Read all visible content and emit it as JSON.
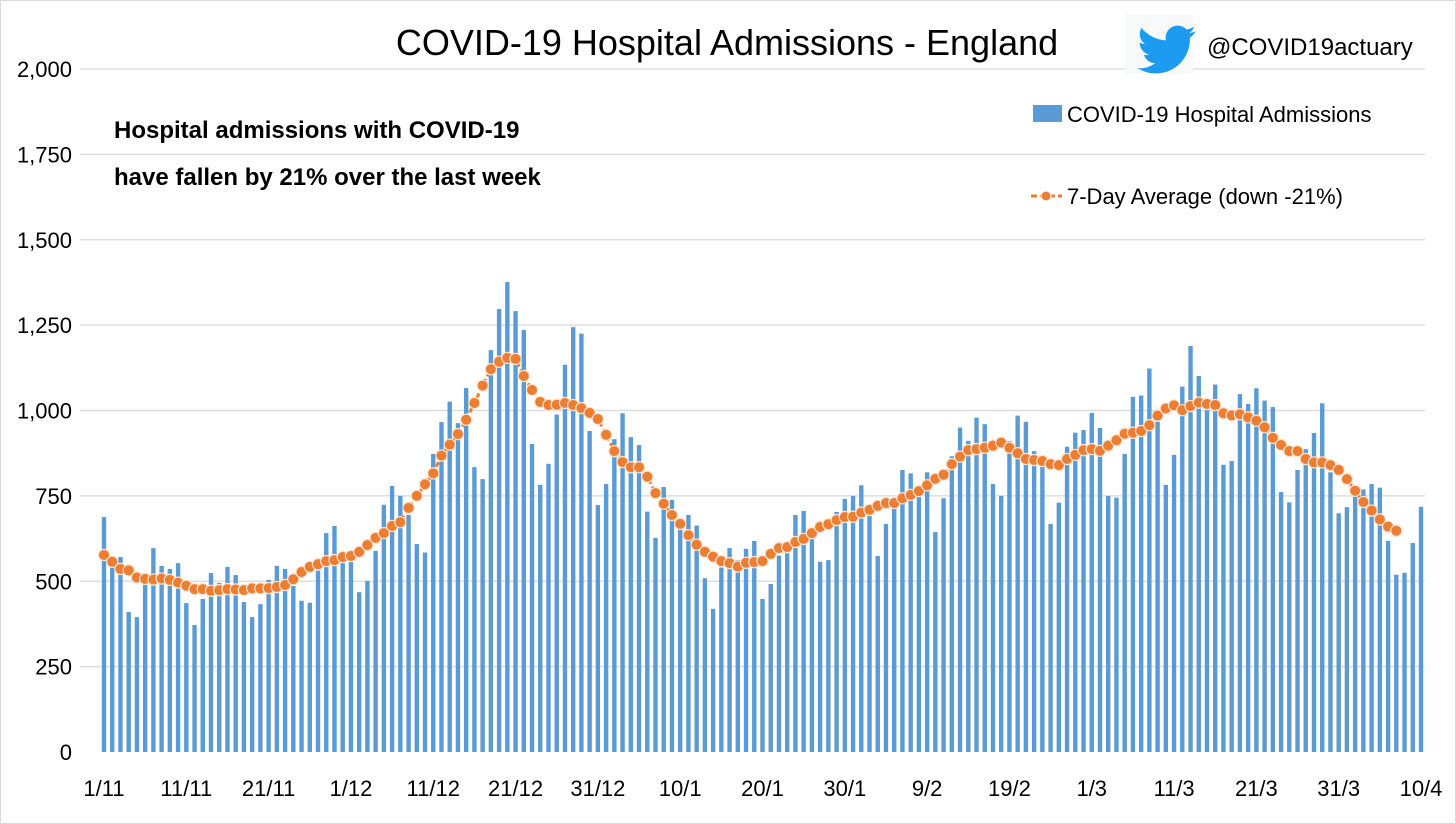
{
  "chart_data": {
    "type": "bar",
    "title": "COVID-19 Hospital Admissions - England",
    "handle": "@COVID19actuary",
    "annotation": [
      "Hospital admissions with COVID-19",
      "have fallen by 21% over the last week"
    ],
    "xlabel": "",
    "ylabel": "",
    "ylim": [
      0,
      2000
    ],
    "y_ticks": [
      0,
      250,
      500,
      750,
      1000,
      1250,
      1500,
      1750,
      2000
    ],
    "y_tick_labels": [
      "0",
      "250",
      "500",
      "750",
      "1,000",
      "1,250",
      "1,500",
      "1,750",
      "2,000"
    ],
    "x_start": "1/11",
    "x_step_days": 1,
    "x_ticks": [
      {
        "label": "1/11",
        "index": 0
      },
      {
        "label": "11/11",
        "index": 10
      },
      {
        "label": "21/11",
        "index": 20
      },
      {
        "label": "1/12",
        "index": 30
      },
      {
        "label": "11/12",
        "index": 40
      },
      {
        "label": "21/12",
        "index": 50
      },
      {
        "label": "31/12",
        "index": 60
      },
      {
        "label": "10/1",
        "index": 70
      },
      {
        "label": "20/1",
        "index": 80
      },
      {
        "label": "30/1",
        "index": 90
      },
      {
        "label": "9/2",
        "index": 100
      },
      {
        "label": "19/2",
        "index": 110
      },
      {
        "label": "1/3",
        "index": 120
      },
      {
        "label": "11/3",
        "index": 130
      },
      {
        "label": "21/3",
        "index": 140
      },
      {
        "label": "31/3",
        "index": 150
      },
      {
        "label": "10/4",
        "index": 160
      }
    ],
    "grid": true,
    "legend_position": "top-right",
    "series": [
      {
        "name": "COVID-19 Hospital Admissions",
        "type": "bar",
        "color": "#5b9bd5",
        "values": [
          688,
          555,
          571,
          410,
          395,
          489,
          597,
          545,
          536,
          553,
          436,
          372,
          448,
          524,
          495,
          542,
          518,
          439,
          395,
          433,
          504,
          545,
          536,
          486,
          443,
          437,
          531,
          641,
          662,
          553,
          556,
          468,
          501,
          589,
          724,
          779,
          750,
          694,
          609,
          584,
          873,
          966,
          1026,
          963,
          1066,
          834,
          799,
          1177,
          1297,
          1376,
          1291,
          1236,
          902,
          782,
          844,
          988,
          1134,
          1244,
          1225,
          940,
          723,
          785,
          916,
          992,
          922,
          899,
          704,
          627,
          776,
          738,
          674,
          694,
          663,
          509,
          419,
          540,
          597,
          562,
          595,
          618,
          448,
          492,
          575,
          582,
          694,
          706,
          624,
          557,
          562,
          703,
          741,
          750,
          781,
          691,
          574,
          668,
          714,
          826,
          816,
          748,
          819,
          644,
          743,
          866,
          950,
          911,
          979,
          960,
          785,
          750,
          911,
          985,
          967,
          881,
          836,
          668,
          730,
          894,
          935,
          943,
          993,
          949,
          750,
          745,
          873,
          1040,
          1044,
          1123,
          967,
          782,
          870,
          1070,
          1189,
          1101,
          1001,
          1076,
          841,
          852,
          1048,
          1019,
          1065,
          1029,
          1010,
          761,
          731,
          826,
          887,
          934,
          1021,
          819,
          699,
          717,
          748,
          769,
          785,
          774,
          618,
          519,
          525,
          612,
          718
        ]
      },
      {
        "name": "7-Day Average (down -21%)",
        "type": "line",
        "color": "#ed7d31",
        "values": [
          577,
          557,
          536,
          532,
          511,
          507,
          505,
          508,
          504,
          496,
          487,
          477,
          477,
          472,
          474,
          477,
          476,
          474,
          479,
          479,
          480,
          483,
          489,
          506,
          527,
          542,
          550,
          559,
          562,
          571,
          574,
          586,
          606,
          627,
          641,
          662,
          673,
          715,
          750,
          784,
          816,
          868,
          900,
          931,
          973,
          1022,
          1073,
          1121,
          1143,
          1154,
          1151,
          1101,
          1060,
          1025,
          1016,
          1017,
          1022,
          1016,
          1007,
          993,
          975,
          929,
          881,
          849,
          834,
          834,
          806,
          758,
          727,
          694,
          668,
          635,
          607,
          586,
          572,
          559,
          553,
          543,
          554,
          556,
          559,
          580,
          597,
          600,
          615,
          624,
          641,
          659,
          667,
          679,
          688,
          689,
          701,
          709,
          721,
          729,
          729,
          743,
          753,
          764,
          781,
          800,
          812,
          843,
          865,
          884,
          887,
          891,
          897,
          906,
          891,
          875,
          858,
          855,
          852,
          843,
          840,
          858,
          870,
          884,
          887,
          882,
          897,
          913,
          932,
          935,
          940,
          957,
          985,
          1006,
          1015,
          1001,
          1013,
          1023,
          1019,
          1016,
          992,
          986,
          989,
          980,
          970,
          951,
          920,
          899,
          881,
          881,
          858,
          848,
          848,
          840,
          826,
          799,
          765,
          732,
          707,
          681,
          660,
          648,
          null,
          null,
          null
        ]
      }
    ]
  }
}
